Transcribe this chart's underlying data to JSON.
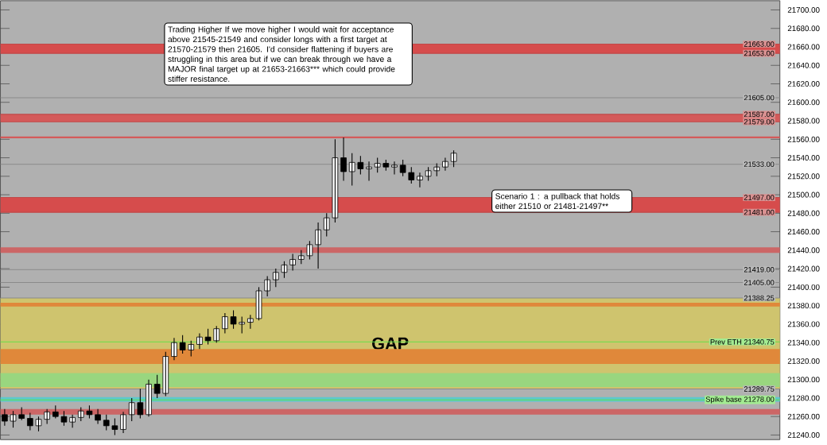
{
  "chart_data": {
    "type": "candlestick",
    "categories": [
      null,
      null,
      null,
      null,
      null,
      null,
      null,
      null,
      null,
      null,
      null,
      null,
      null,
      null,
      null,
      null,
      null,
      null,
      null,
      null,
      null,
      null,
      null,
      null,
      null,
      null,
      null,
      null,
      null,
      null,
      null,
      null,
      null,
      null,
      null,
      null,
      null,
      null,
      null,
      null,
      null,
      null,
      null,
      null,
      null,
      null,
      null,
      null,
      null,
      null,
      null,
      null,
      null,
      null,
      null,
      null,
      null,
      null,
      null,
      null,
      null,
      null,
      null,
      null,
      null,
      null,
      null,
      null,
      null,
      null,
      null,
      null,
      null,
      null,
      null,
      null,
      null,
      null,
      null,
      null,
      null,
      null,
      null,
      null,
      null,
      null,
      null,
      null,
      null,
      null,
      null,
      null
    ],
    "ohlc": [
      [
        21262,
        21268,
        21250,
        21255
      ],
      [
        21255,
        21266,
        21248,
        21262
      ],
      [
        21262,
        21270,
        21256,
        21258
      ],
      [
        21258,
        21264,
        21245,
        21250
      ],
      [
        21250,
        21260,
        21244,
        21257
      ],
      [
        21257,
        21268,
        21252,
        21265
      ],
      [
        21265,
        21272,
        21258,
        21260
      ],
      [
        21260,
        21266,
        21250,
        21254
      ],
      [
        21254,
        21262,
        21248,
        21259
      ],
      [
        21259,
        21270,
        21255,
        21266
      ],
      [
        21266,
        21272,
        21258,
        21262
      ],
      [
        21262,
        21268,
        21252,
        21256
      ],
      [
        21256,
        21262,
        21245,
        21250
      ],
      [
        21250,
        21258,
        21240,
        21246
      ],
      [
        21246,
        21265,
        21242,
        21262
      ],
      [
        21262,
        21280,
        21255,
        21275
      ],
      [
        21275,
        21290,
        21258,
        21262
      ],
      [
        21262,
        21300,
        21260,
        21295
      ],
      [
        21295,
        21305,
        21280,
        21285
      ],
      [
        21285,
        21330,
        21282,
        21325
      ],
      [
        21325,
        21345,
        21321,
        21340
      ],
      [
        21340,
        21348,
        21328,
        21332
      ],
      [
        21332,
        21342,
        21325,
        21338
      ],
      [
        21338,
        21350,
        21333,
        21346
      ],
      [
        21346,
        21355,
        21338,
        21342
      ],
      [
        21342,
        21358,
        21340,
        21355
      ],
      [
        21355,
        21372,
        21350,
        21368
      ],
      [
        21368,
        21375,
        21355,
        21360
      ],
      [
        21360,
        21368,
        21350,
        21362
      ],
      [
        21362,
        21370,
        21355,
        21366
      ],
      [
        21366,
        21400,
        21364,
        21396
      ],
      [
        21396,
        21412,
        21390,
        21408
      ],
      [
        21408,
        21420,
        21400,
        21416
      ],
      [
        21416,
        21428,
        21410,
        21424
      ],
      [
        21424,
        21436,
        21418,
        21430
      ],
      [
        21430,
        21440,
        21425,
        21434
      ],
      [
        21434,
        21450,
        21430,
        21446
      ],
      [
        21446,
        21470,
        21420,
        21462
      ],
      [
        21462,
        21480,
        21455,
        21475
      ],
      [
        21475,
        21560,
        21470,
        21540
      ],
      [
        21540,
        21562,
        21515,
        21525
      ],
      [
        21525,
        21545,
        21510,
        21535
      ],
      [
        21535,
        21542,
        21522,
        21528
      ],
      [
        21528,
        21536,
        21515,
        21530
      ],
      [
        21530,
        21540,
        21524,
        21534
      ],
      [
        21534,
        21538,
        21526,
        21530
      ],
      [
        21530,
        21536,
        21522,
        21532
      ],
      [
        21532,
        21538,
        21520,
        21524
      ],
      [
        21524,
        21530,
        21512,
        21516
      ],
      [
        21516,
        21524,
        21508,
        21520
      ],
      [
        21520,
        21530,
        21515,
        21526
      ],
      [
        21526,
        21534,
        21520,
        21530
      ],
      [
        21530,
        21540,
        21526,
        21536
      ],
      [
        21536,
        21548,
        21530,
        21545
      ],
      null,
      null,
      null,
      null,
      null,
      null,
      null,
      null,
      null,
      null,
      null,
      null,
      null,
      null,
      null,
      null,
      null,
      null,
      null,
      null,
      null,
      null,
      null,
      null,
      null,
      null,
      null,
      null,
      null,
      null,
      null,
      null,
      null,
      null,
      null,
      null,
      null,
      null
    ],
    "ylim": [
      21235,
      21710
    ],
    "yticks": [
      {
        "value": 21240,
        "label": "21240.00"
      },
      {
        "value": 21260,
        "label": "21260.00"
      },
      {
        "value": 21280,
        "label": "21280.00"
      },
      {
        "value": 21300,
        "label": "21300.00"
      },
      {
        "value": 21320,
        "label": "21320.00"
      },
      {
        "value": 21340,
        "label": "21340.00"
      },
      {
        "value": 21360,
        "label": "21360.00"
      },
      {
        "value": 21380,
        "label": "21380.00"
      },
      {
        "value": 21400,
        "label": "21400.00"
      },
      {
        "value": 21420,
        "label": "21420.00"
      },
      {
        "value": 21440,
        "label": "21440.00"
      },
      {
        "value": 21460,
        "label": "21460.00"
      },
      {
        "value": 21480,
        "label": "21480.00"
      },
      {
        "value": 21500,
        "label": "21500.00"
      },
      {
        "value": 21520,
        "label": "21520.00"
      },
      {
        "value": 21540,
        "label": "21540.00"
      },
      {
        "value": 21560,
        "label": "21560.00"
      },
      {
        "value": 21580,
        "label": "21580.00"
      },
      {
        "value": 21600,
        "label": "21600.00"
      },
      {
        "value": 21620,
        "label": "21620.00"
      },
      {
        "value": 21640,
        "label": "21640.00"
      },
      {
        "value": 21660,
        "label": "21660.00"
      },
      {
        "value": 21680,
        "label": "21680.00"
      },
      {
        "value": 21700,
        "label": "21700.00"
      }
    ],
    "bands": [
      {
        "axis": "y",
        "from": 21653,
        "to": 21663,
        "color": "#d64c4c"
      },
      {
        "axis": "y",
        "from": 21579,
        "to": 21587,
        "color": "#d45a5a"
      },
      {
        "axis": "y",
        "from": 21561,
        "to": 21563,
        "color": "#d45a5a"
      },
      {
        "axis": "y",
        "from": 21481,
        "to": 21497,
        "color": "#d64c4c"
      },
      {
        "axis": "y",
        "from": 21437,
        "to": 21443,
        "color": "#cc6666"
      },
      {
        "axis": "y",
        "from": 21289.75,
        "to": 21388.25,
        "color": "#cfc46e",
        "label": "GAP"
      },
      {
        "axis": "y",
        "from": 21379,
        "to": 21383,
        "color": "#e0883a"
      },
      {
        "axis": "y",
        "from": 21317,
        "to": 21333,
        "color": "#e0883a"
      },
      {
        "axis": "y",
        "from": 21292,
        "to": 21307,
        "color": "#99d67f"
      },
      {
        "axis": "y",
        "from": 21276,
        "to": 21281,
        "color": "#5ec8cc"
      },
      {
        "axis": "y",
        "from": 21262,
        "to": 21268,
        "color": "#cc6666"
      }
    ],
    "ref_lines": [
      {
        "axis": "y",
        "value": 21663,
        "label": "21663.00"
      },
      {
        "axis": "y",
        "value": 21653,
        "label": "21653.00"
      },
      {
        "axis": "y",
        "value": 21605,
        "label": "21605.00",
        "color": "#8a8a8a"
      },
      {
        "axis": "y",
        "value": 21587,
        "label": "21587.00"
      },
      {
        "axis": "y",
        "value": 21579,
        "label": "21579.00"
      },
      {
        "axis": "y",
        "value": 21533,
        "label": "21533.00",
        "color": "#8a8a8a"
      },
      {
        "axis": "y",
        "value": 21497,
        "label": "21497.00"
      },
      {
        "axis": "y",
        "value": 21481,
        "label": "21481.00"
      },
      {
        "axis": "y",
        "value": 21419,
        "label": "21419.00",
        "color": "#8a8a8a"
      },
      {
        "axis": "y",
        "value": 21405,
        "label": "21405.00",
        "color": "#8a8a8a"
      },
      {
        "axis": "y",
        "value": 21388.25,
        "label": "21388.25",
        "color": "#8a8a8a"
      },
      {
        "axis": "y",
        "value": 21340.75,
        "label": "Prev ETH 21340.75",
        "color": "#66e04a"
      },
      {
        "axis": "y",
        "value": 21289.75,
        "label": "21289.75",
        "color": "#8a8a8a"
      },
      {
        "axis": "y",
        "value": 21278,
        "label": "Spike base 21278.00",
        "color": "#66e04a"
      }
    ],
    "annotations": [
      "Trading Higher If we move higher I would wait for acceptance above 21545-21549 and consider longs with a first target at 21570-21579 then 21605. I'd consider flattening if buyers are struggling in this area but if we can break through we have a MAJOR final target up at 21653-21663*** which could provide stiffer resistance.",
      "Scenario 1 : a pullback that holds either 21510 or 21481-21497**"
    ]
  }
}
